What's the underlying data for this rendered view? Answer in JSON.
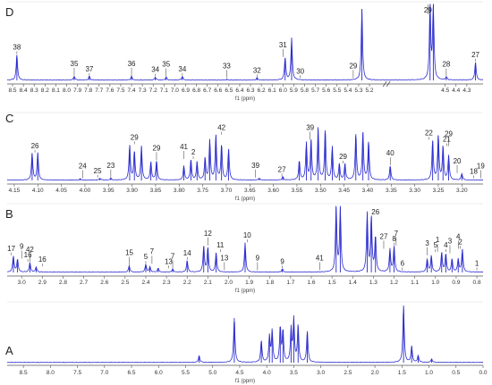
{
  "chart_data": [
    {
      "panel": "D",
      "type": "line",
      "axis_label": "f1 (ppm)",
      "xlim": [
        8.55,
        4.15
      ],
      "ticks": [
        "8.5",
        "8.4",
        "8.3",
        "8.2",
        "8.1",
        "8.0",
        "7.9",
        "7.8",
        "7.7",
        "7.6",
        "7.5",
        "7.4",
        "7.3",
        "7.2",
        "7.1",
        "7.0",
        "6.9",
        "6.8",
        "6.7",
        "6.6",
        "6.5",
        "6.4",
        "6.3",
        "6.2",
        "6.1",
        "6.0",
        "5.9",
        "5.8",
        "5.7",
        "5.6",
        "5.5",
        "5.4",
        "5.3",
        "5.2",
        "4.5",
        "4.4",
        "4.3"
      ],
      "peaks": [
        {
          "x": 8.46,
          "h": 0.34
        },
        {
          "x": 7.93,
          "h": 0.05
        },
        {
          "x": 7.79,
          "h": 0.05
        },
        {
          "x": 7.4,
          "h": 0.05
        },
        {
          "x": 7.18,
          "h": 0.04
        },
        {
          "x": 7.08,
          "h": 0.04
        },
        {
          "x": 6.93,
          "h": 0.05
        },
        {
          "x": 6.52,
          "h": 0.01
        },
        {
          "x": 6.24,
          "h": 0.03
        },
        {
          "x": 5.98,
          "h": 0.3
        },
        {
          "x": 5.92,
          "h": 0.56
        },
        {
          "x": 5.27,
          "h": 0.95
        },
        {
          "x": 4.64,
          "h": 1.0
        },
        {
          "x": 4.61,
          "h": 1.0
        },
        {
          "x": 4.49,
          "h": 0.04
        },
        {
          "x": 4.22,
          "h": 0.24
        }
      ],
      "labels": [
        {
          "text": "38",
          "x": 8.46
        },
        {
          "text": "35",
          "x": 7.93
        },
        {
          "text": "37",
          "x": 7.79
        },
        {
          "text": "36",
          "x": 7.4
        },
        {
          "text": "34",
          "x": 7.18
        },
        {
          "text": "35",
          "x": 7.08
        },
        {
          "text": "34",
          "x": 6.93
        },
        {
          "text": "33",
          "x": 6.52
        },
        {
          "text": "32",
          "x": 6.24
        },
        {
          "text": "31",
          "x": 6.0
        },
        {
          "text": "30",
          "x": 5.84
        },
        {
          "text": "29",
          "x": 5.35
        },
        {
          "text": "29",
          "x": 4.66
        },
        {
          "text": "28",
          "x": 4.49
        },
        {
          "text": "27",
          "x": 4.22
        }
      ]
    },
    {
      "panel": "C",
      "type": "line",
      "axis_label": "f1 (ppm)",
      "xlim": [
        4.165,
        3.155
      ],
      "ticks": [
        "4.15",
        "4.10",
        "4.05",
        "4.00",
        "3.95",
        "3.90",
        "3.85",
        "3.80",
        "3.75",
        "3.70",
        "3.65",
        "3.60",
        "3.55",
        "3.50",
        "3.45",
        "3.40",
        "3.35",
        "3.30",
        "3.25",
        "3.20",
        "3.15"
      ],
      "peaks": [
        {
          "x": 4.112,
          "h": 0.42
        },
        {
          "x": 4.1,
          "h": 0.42
        },
        {
          "x": 4.01,
          "h": 0.02
        },
        {
          "x": 3.968,
          "h": 0.03
        },
        {
          "x": 3.945,
          "h": 0.03
        },
        {
          "x": 3.905,
          "h": 0.55
        },
        {
          "x": 3.895,
          "h": 0.45
        },
        {
          "x": 3.88,
          "h": 0.52
        },
        {
          "x": 3.86,
          "h": 0.28
        },
        {
          "x": 3.848,
          "h": 0.3
        },
        {
          "x": 3.79,
          "h": 0.22
        },
        {
          "x": 3.775,
          "h": 0.32
        },
        {
          "x": 3.762,
          "h": 0.28
        },
        {
          "x": 3.745,
          "h": 0.34
        },
        {
          "x": 3.735,
          "h": 0.62
        },
        {
          "x": 3.722,
          "h": 0.7
        },
        {
          "x": 3.71,
          "h": 0.55
        },
        {
          "x": 3.695,
          "h": 0.48
        },
        {
          "x": 3.63,
          "h": 0.03
        },
        {
          "x": 3.58,
          "h": 0.05
        },
        {
          "x": 3.545,
          "h": 0.3
        },
        {
          "x": 3.53,
          "h": 0.58
        },
        {
          "x": 3.52,
          "h": 0.62
        },
        {
          "x": 3.505,
          "h": 0.8
        },
        {
          "x": 3.49,
          "h": 0.78
        },
        {
          "x": 3.475,
          "h": 0.52
        },
        {
          "x": 3.46,
          "h": 0.25
        },
        {
          "x": 3.448,
          "h": 0.25
        },
        {
          "x": 3.425,
          "h": 0.72
        },
        {
          "x": 3.41,
          "h": 0.74
        },
        {
          "x": 3.398,
          "h": 0.6
        },
        {
          "x": 3.352,
          "h": 0.22
        },
        {
          "x": 3.262,
          "h": 0.62
        },
        {
          "x": 3.25,
          "h": 0.7
        },
        {
          "x": 3.24,
          "h": 0.52
        },
        {
          "x": 3.228,
          "h": 0.38
        },
        {
          "x": 3.2,
          "h": 0.1
        }
      ],
      "labels": [
        {
          "text": "26",
          "x": 4.106
        },
        {
          "text": "24",
          "x": 4.005
        },
        {
          "text": "25",
          "x": 3.973
        },
        {
          "text": "23",
          "x": 3.945
        },
        {
          "text": "29",
          "x": 3.895
        },
        {
          "text": "29",
          "x": 3.848
        },
        {
          "text": "2",
          "x": 3.77
        },
        {
          "text": "41",
          "x": 3.79
        },
        {
          "text": "42",
          "x": 3.71
        },
        {
          "text": "39",
          "x": 3.638
        },
        {
          "text": "27",
          "x": 3.582
        },
        {
          "text": "39",
          "x": 3.522
        },
        {
          "text": "29",
          "x": 3.452
        },
        {
          "text": "40",
          "x": 3.352
        },
        {
          "text": "22",
          "x": 3.27
        },
        {
          "text": "29",
          "x": 3.228
        },
        {
          "text": "21",
          "x": 3.232
        },
        {
          "text": "20",
          "x": 3.21
        },
        {
          "text": "18",
          "x": 3.175
        },
        {
          "text": "19",
          "x": 3.16
        }
      ]
    },
    {
      "panel": "B",
      "type": "line",
      "axis_label": "f1 (ppm)",
      "xlim": [
        3.07,
        0.77
      ],
      "ticks": [
        "3.0",
        "2.9",
        "2.8",
        "2.7",
        "2.6",
        "2.5",
        "2.4",
        "2.3",
        "2.2",
        "2.1",
        "2.0",
        "1.9",
        "1.8",
        "1.7",
        "1.6",
        "1.5",
        "1.4",
        "1.3",
        "1.2",
        "1.1",
        "1.0",
        "0.9",
        "0.8"
      ],
      "peaks": [
        {
          "x": 3.04,
          "h": 0.25
        },
        {
          "x": 3.02,
          "h": 0.2
        },
        {
          "x": 2.96,
          "h": 0.15
        },
        {
          "x": 2.93,
          "h": 0.08
        },
        {
          "x": 2.48,
          "h": 0.1
        },
        {
          "x": 2.4,
          "h": 0.12
        },
        {
          "x": 2.38,
          "h": 0.08
        },
        {
          "x": 2.34,
          "h": 0.06
        },
        {
          "x": 2.27,
          "h": 0.05
        },
        {
          "x": 2.2,
          "h": 0.18
        },
        {
          "x": 2.12,
          "h": 0.4
        },
        {
          "x": 2.1,
          "h": 0.38
        },
        {
          "x": 2.06,
          "h": 0.3
        },
        {
          "x": 1.92,
          "h": 0.45
        },
        {
          "x": 1.74,
          "h": 0.05
        },
        {
          "x": 1.48,
          "h": 1.0
        },
        {
          "x": 1.46,
          "h": 1.0
        },
        {
          "x": 1.33,
          "h": 0.9
        },
        {
          "x": 1.31,
          "h": 0.85
        },
        {
          "x": 1.29,
          "h": 0.55
        },
        {
          "x": 1.22,
          "h": 0.35
        },
        {
          "x": 1.2,
          "h": 0.4
        },
        {
          "x": 1.04,
          "h": 0.2
        },
        {
          "x": 1.02,
          "h": 0.25
        },
        {
          "x": 0.97,
          "h": 0.3
        },
        {
          "x": 0.95,
          "h": 0.28
        },
        {
          "x": 0.92,
          "h": 0.2
        },
        {
          "x": 0.89,
          "h": 0.2
        },
        {
          "x": 0.87,
          "h": 0.35
        }
      ],
      "labels": [
        {
          "text": "17",
          "x": 3.05
        },
        {
          "text": "9",
          "x": 3.0
        },
        {
          "text": "16",
          "x": 2.97
        },
        {
          "text": "42",
          "x": 2.96
        },
        {
          "text": "16",
          "x": 2.9
        },
        {
          "text": "15",
          "x": 2.48
        },
        {
          "text": "5",
          "x": 2.4
        },
        {
          "text": "7",
          "x": 2.37
        },
        {
          "text": "13",
          "x": 2.29
        },
        {
          "text": "7",
          "x": 2.27
        },
        {
          "text": "14",
          "x": 2.2
        },
        {
          "text": "12",
          "x": 2.1
        },
        {
          "text": "11",
          "x": 2.04
        },
        {
          "text": "13",
          "x": 2.02
        },
        {
          "text": "10",
          "x": 1.91
        },
        {
          "text": "9",
          "x": 1.86
        },
        {
          "text": "9",
          "x": 1.74
        },
        {
          "text": "41",
          "x": 1.56
        },
        {
          "text": "26",
          "x": 1.29
        },
        {
          "text": "27",
          "x": 1.25
        },
        {
          "text": "8",
          "x": 1.2
        },
        {
          "text": "7",
          "x": 1.19
        },
        {
          "text": "6",
          "x": 1.16
        },
        {
          "text": "3",
          "x": 1.04
        },
        {
          "text": "5",
          "x": 1.0
        },
        {
          "text": "1",
          "x": 0.99
        },
        {
          "text": "4",
          "x": 0.95
        },
        {
          "text": "3",
          "x": 0.93
        },
        {
          "text": "2",
          "x": 0.88
        },
        {
          "text": "4",
          "x": 0.89
        },
        {
          "text": "1",
          "x": 0.8
        }
      ]
    },
    {
      "panel": "A",
      "type": "line",
      "axis_label": "f1 (ppm)",
      "xlim": [
        8.8,
        0.0
      ],
      "ticks": [
        "8.5",
        "8.0",
        "7.5",
        "7.0",
        "6.5",
        "6.0",
        "5.5",
        "5.0",
        "4.5",
        "4.0",
        "3.5",
        "3.0",
        "2.5",
        "2.0",
        "1.5",
        "1.0",
        "0.5",
        "0.0"
      ],
      "peaks": [
        {
          "x": 5.25,
          "h": 0.12
        },
        {
          "x": 4.6,
          "h": 0.78
        },
        {
          "x": 4.1,
          "h": 0.38
        },
        {
          "x": 3.95,
          "h": 0.45
        },
        {
          "x": 3.9,
          "h": 0.55
        },
        {
          "x": 3.75,
          "h": 0.62
        },
        {
          "x": 3.7,
          "h": 0.55
        },
        {
          "x": 3.55,
          "h": 0.58
        },
        {
          "x": 3.5,
          "h": 0.75
        },
        {
          "x": 3.42,
          "h": 0.64
        },
        {
          "x": 3.25,
          "h": 0.55
        },
        {
          "x": 1.47,
          "h": 1.0
        },
        {
          "x": 1.32,
          "h": 0.28
        },
        {
          "x": 1.2,
          "h": 0.12
        },
        {
          "x": 0.95,
          "h": 0.06
        }
      ],
      "labels": []
    }
  ]
}
